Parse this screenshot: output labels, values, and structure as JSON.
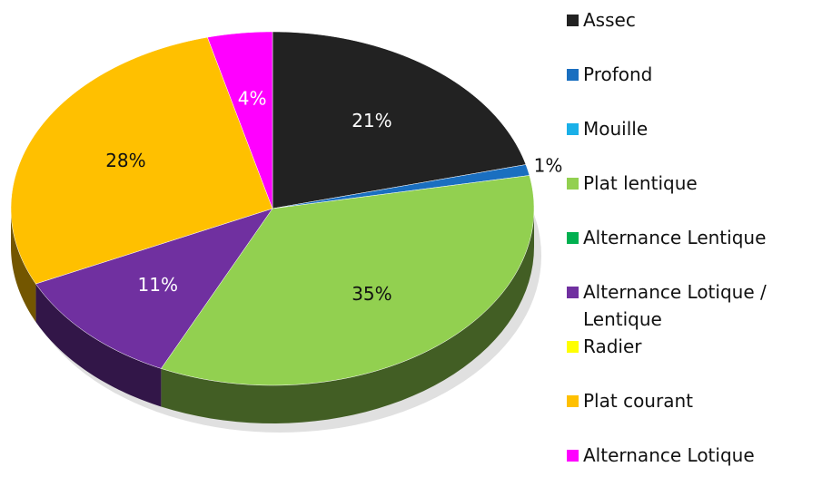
{
  "chart_data": {
    "type": "pie",
    "categories": [
      "Assec",
      "Profond",
      "Mouille",
      "Plat lentique",
      "Alternance Lentique",
      "Alternance Lotique / Lentique",
      "Radier",
      "Plat courant",
      "Alternance Lotique"
    ],
    "values": [
      21,
      1,
      0,
      35,
      0,
      11,
      0,
      28,
      4
    ],
    "value_labels": [
      "21%",
      "1%",
      null,
      "35%",
      null,
      "11%",
      null,
      "28%",
      "4%"
    ],
    "colors": [
      "#222222",
      "#1a6fc0",
      "#1ab0e8",
      "#92d050",
      "#00b050",
      "#7030a0",
      "#ffff00",
      "#ffc000",
      "#ff00ff"
    ],
    "legend": "right"
  }
}
